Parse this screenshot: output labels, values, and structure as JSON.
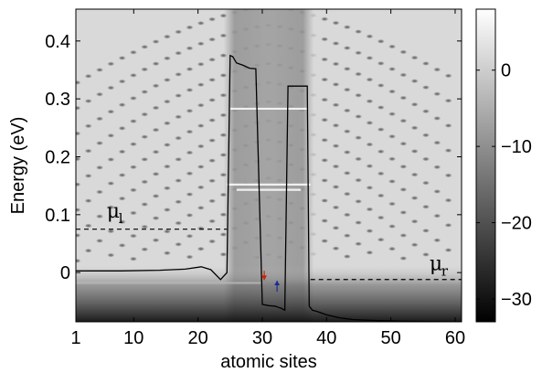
{
  "chart_data": {
    "type": "heatmap",
    "title": "",
    "xlabel": "atomic sites",
    "ylabel": "Energy (eV)",
    "xlim": [
      1,
      61
    ],
    "ylim": [
      -0.085,
      0.455
    ],
    "x_ticks": [
      1,
      10,
      20,
      30,
      40,
      50,
      60
    ],
    "y_ticks": [
      0,
      0.1,
      0.2,
      0.3,
      0.4
    ],
    "x_tick_labels": [
      "1",
      "10",
      "20",
      "30",
      "40",
      "50",
      "60"
    ],
    "y_tick_labels": [
      "0",
      "0.1",
      "0.2",
      "0.3",
      "0.4"
    ],
    "colormap": "gray",
    "colorbar": {
      "range": [
        -33,
        8
      ],
      "ticks": [
        0,
        -10,
        -20,
        -30
      ],
      "tick_labels": [
        "0",
        "−10",
        "−20",
        "−30"
      ]
    },
    "potential_profile": {
      "name": "",
      "color": "#000000",
      "x": [
        1,
        8,
        14,
        18,
        20.5,
        22,
        23.5,
        24.5,
        25,
        25.4,
        26,
        27,
        28,
        29,
        30,
        31,
        32,
        32.5,
        33,
        33.5,
        34,
        35,
        36,
        37,
        37.3,
        37.8,
        38.5,
        40,
        42,
        44,
        46,
        48,
        52,
        61
      ],
      "y": [
        0.003,
        0.003,
        0.004,
        0.006,
        0.01,
        0.005,
        -0.012,
        0.0,
        0.375,
        0.373,
        0.362,
        0.358,
        0.353,
        0.352,
        -0.055,
        -0.057,
        -0.058,
        -0.06,
        -0.062,
        -0.065,
        0.322,
        0.322,
        0.322,
        0.322,
        -0.058,
        -0.065,
        -0.067,
        -0.073,
        -0.078,
        -0.081,
        -0.082,
        -0.083,
        -0.084,
        -0.085
      ]
    },
    "annotations": [
      {
        "name": "mu_l",
        "label": "μ",
        "sub": "l",
        "x": 5.8,
        "y": 0.095,
        "level": 0.075,
        "line_x": [
          1,
          24.5
        ]
      },
      {
        "name": "mu_r",
        "label": "μ",
        "sub": "r",
        "x": 56,
        "y": 0.004,
        "level": -0.012,
        "line_x": [
          37.5,
          61
        ]
      }
    ],
    "arrows": [
      {
        "name": "spin-down-arrow",
        "color": "#cc2200",
        "x": 30.3,
        "y_from": 0.003,
        "y_to": -0.013
      },
      {
        "name": "spin-up-arrow",
        "color": "#1a2a99",
        "x": 32.3,
        "y_from": -0.033,
        "y_to": -0.014
      }
    ],
    "bright_bands": [
      {
        "y": 0.152,
        "x": [
          24.5,
          37.5
        ]
      },
      {
        "y": 0.143,
        "x": [
          26,
          36
        ]
      },
      {
        "y": 0.283,
        "x": [
          25,
          37
        ]
      },
      {
        "y": -0.018,
        "x": [
          1,
          30
        ]
      }
    ],
    "grid": false,
    "legend": "none"
  }
}
